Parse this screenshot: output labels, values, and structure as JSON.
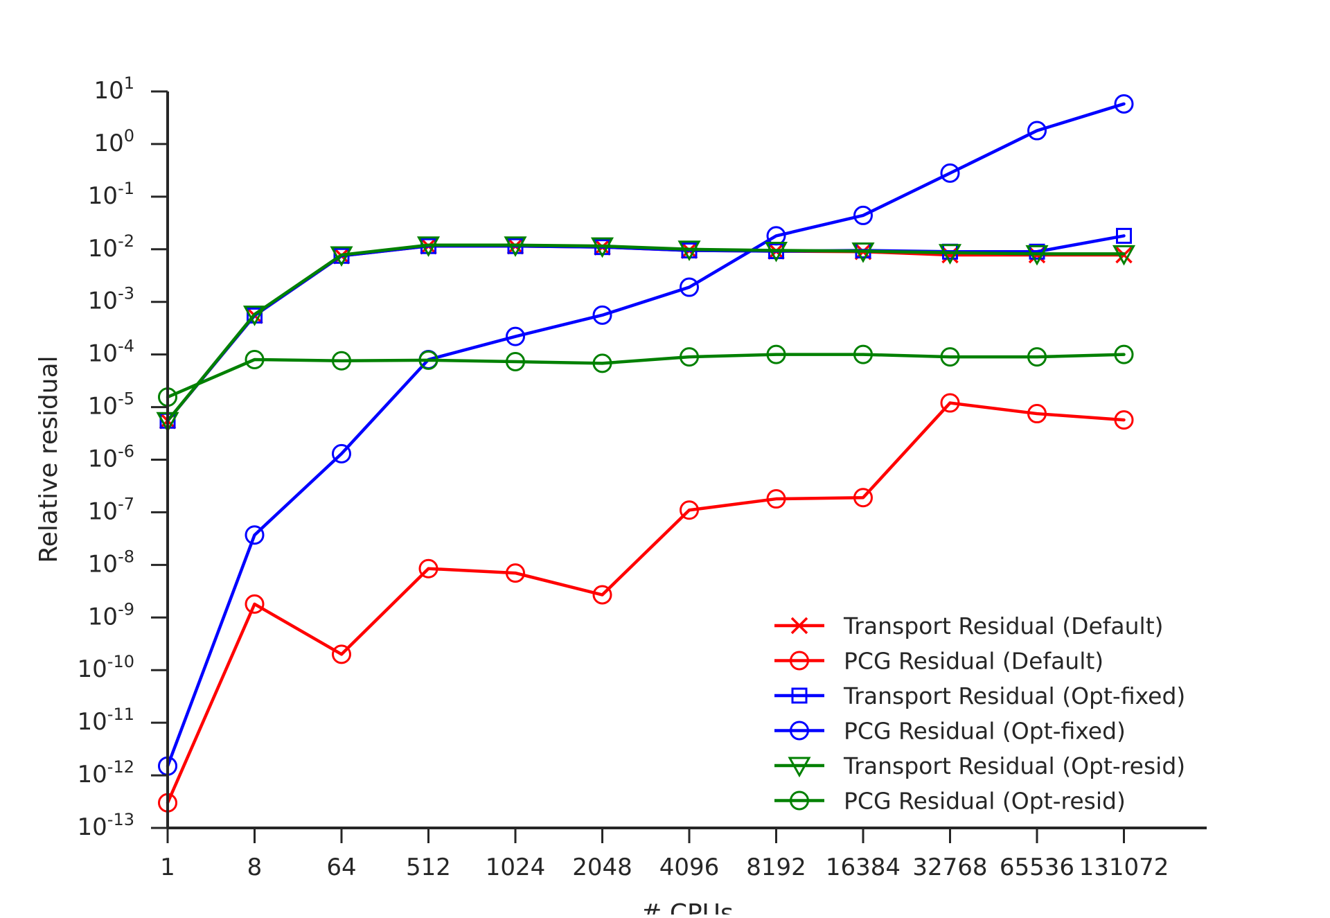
{
  "chart_data": {
    "type": "line",
    "xlabel": "# CPUs",
    "ylabel": "Relative residual",
    "x_scale": "categorical",
    "y_scale": "log",
    "ylim": [
      1e-13,
      10
    ],
    "categories": [
      "1",
      "8",
      "64",
      "512",
      "1024",
      "2048",
      "4096",
      "8192",
      "16384",
      "32768",
      "65536",
      "131072"
    ],
    "y_ticks": [
      {
        "base": "10",
        "exp": "1"
      },
      {
        "base": "10",
        "exp": "0"
      },
      {
        "base": "10",
        "exp": "-1"
      },
      {
        "base": "10",
        "exp": "-2"
      },
      {
        "base": "10",
        "exp": "-3"
      },
      {
        "base": "10",
        "exp": "-4"
      },
      {
        "base": "10",
        "exp": "-5"
      },
      {
        "base": "10",
        "exp": "-6"
      },
      {
        "base": "10",
        "exp": "-7"
      },
      {
        "base": "10",
        "exp": "-8"
      },
      {
        "base": "10",
        "exp": "-9"
      },
      {
        "base": "10",
        "exp": "-10"
      },
      {
        "base": "10",
        "exp": "-11"
      },
      {
        "base": "10",
        "exp": "-12"
      },
      {
        "base": "10",
        "exp": "-13"
      }
    ],
    "grid": false,
    "legend_position": "bottom-right",
    "series": [
      {
        "name": "Transport Residual (Default)",
        "color": "#ff0000",
        "marker": "x",
        "values": [
          5.5e-06,
          0.00055,
          0.0075,
          0.0115,
          0.0115,
          0.011,
          0.0095,
          0.0092,
          0.009,
          0.0078,
          0.0078,
          0.0078
        ]
      },
      {
        "name": "PCG Residual (Default)",
        "color": "#ff0000",
        "marker": "circle",
        "values": [
          3e-13,
          1.8e-09,
          2e-10,
          8.5e-09,
          7e-09,
          2.7e-09,
          1.1e-07,
          1.8e-07,
          1.9e-07,
          1.2e-05,
          7.5e-06,
          5.7e-06
        ]
      },
      {
        "name": "Transport Residual (Opt-fixed)",
        "color": "#0000ff",
        "marker": "square",
        "values": [
          5.5e-06,
          0.00055,
          0.0075,
          0.0115,
          0.0115,
          0.011,
          0.0095,
          0.0092,
          0.0095,
          0.009,
          0.009,
          0.018
        ]
      },
      {
        "name": "PCG Residual (Opt-fixed)",
        "color": "#0000ff",
        "marker": "circle",
        "values": [
          1.5e-12,
          3.7e-08,
          1.3e-06,
          8e-05,
          0.00022,
          0.00056,
          0.0019,
          0.018,
          0.044,
          0.28,
          1.8,
          5.8
        ]
      },
      {
        "name": "Transport Residual (Opt-resid)",
        "color": "#008000",
        "marker": "triangle-down",
        "values": [
          5.5e-06,
          0.00058,
          0.0078,
          0.012,
          0.012,
          0.0115,
          0.01,
          0.0095,
          0.0092,
          0.0086,
          0.0082,
          0.0082
        ]
      },
      {
        "name": "PCG Residual (Opt-resid)",
        "color": "#008000",
        "marker": "circle",
        "values": [
          1.55e-05,
          8e-05,
          7.6e-05,
          7.8e-05,
          7.3e-05,
          6.8e-05,
          9e-05,
          0.0001,
          0.0001,
          9e-05,
          9e-05,
          0.0001
        ]
      }
    ]
  }
}
